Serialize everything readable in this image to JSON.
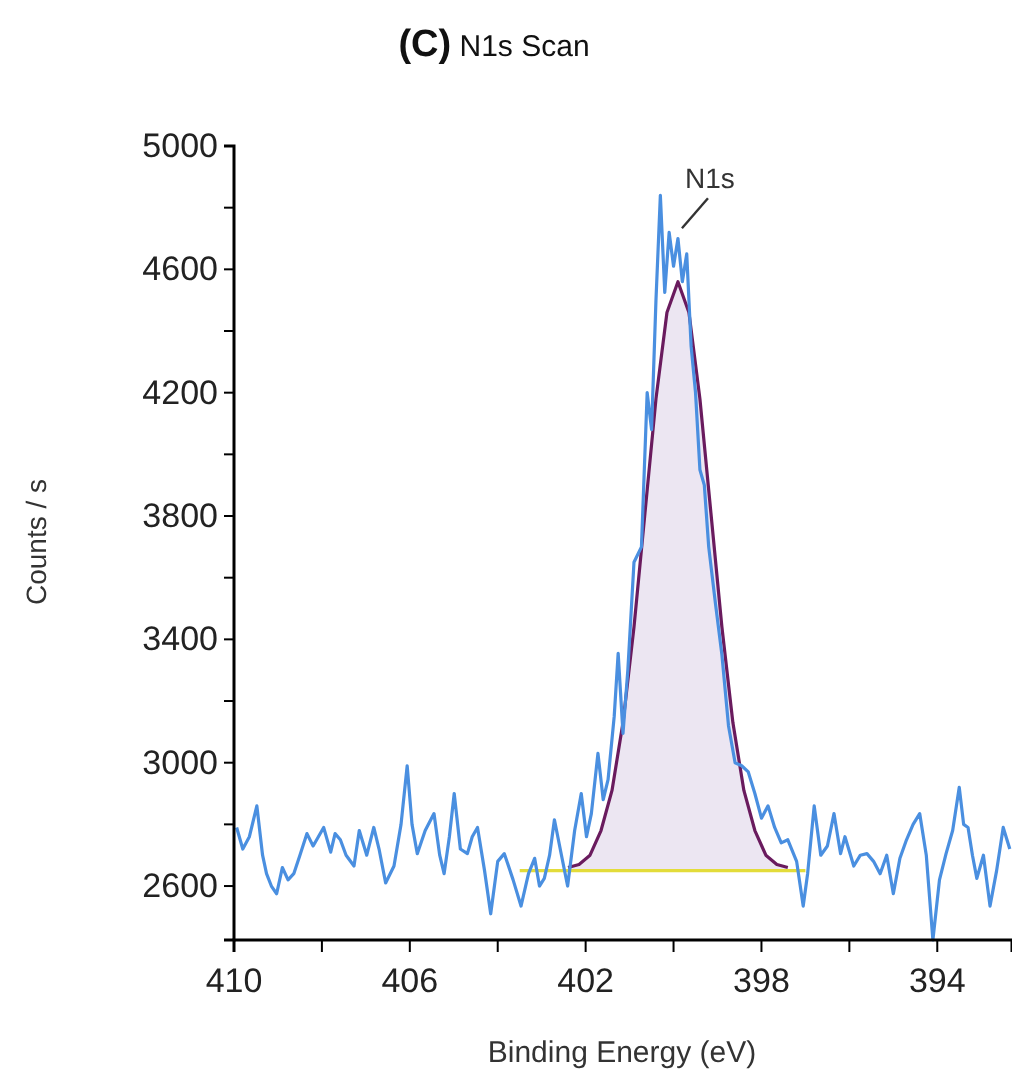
{
  "chart_data": {
    "type": "line",
    "title": "(C) N1s Scan",
    "xlabel": "Binding Energy (eV)",
    "ylabel": "Counts / s",
    "xlim": [
      410,
      392.3
    ],
    "ylim": [
      2425,
      5000
    ],
    "xticks": [
      410,
      {
        "value": 408,
        "label": null
      },
      406,
      {
        "value": 404,
        "label": null
      },
      402,
      {
        "value": 400,
        "label": null
      },
      398,
      {
        "value": 396,
        "label": null
      },
      394
    ],
    "yticks": [
      2600,
      {
        "value": 2800,
        "label": null
      },
      3000,
      {
        "value": 3200,
        "label": null
      },
      3400,
      {
        "value": 3600,
        "label": null
      },
      3800,
      {
        "value": 4000,
        "label": null
      },
      4200,
      {
        "value": 4400,
        "label": null
      },
      4600,
      {
        "value": 4800,
        "label": null
      },
      5000
    ],
    "grid": false,
    "marker": "none",
    "line_style": "solid",
    "annotations": [
      {
        "text": "N1s",
        "x": 399.9,
        "y": 4720
      }
    ],
    "series": [
      {
        "color": "#4a8fe0",
        "x": [
          409.94,
          409.8,
          409.65,
          409.48,
          409.35,
          409.26,
          409.15,
          409.03,
          408.9,
          408.77,
          408.64,
          408.5,
          408.34,
          408.2,
          408.08,
          407.96,
          407.8,
          407.7,
          407.58,
          407.45,
          407.27,
          407.15,
          406.98,
          406.82,
          406.7,
          406.55,
          406.36,
          406.2,
          406.06,
          405.95,
          405.83,
          405.65,
          405.45,
          405.32,
          405.22,
          405.1,
          404.99,
          404.85,
          404.69,
          404.58,
          404.46,
          404.3,
          404.16,
          404.0,
          403.85,
          403.65,
          403.47,
          403.3,
          403.16,
          403.05,
          402.94,
          402.82,
          402.71,
          402.55,
          402.41,
          402.25,
          402.1,
          401.98,
          401.87,
          401.72,
          401.6,
          401.49,
          401.35,
          401.26,
          401.15,
          401.04,
          400.9,
          400.73,
          400.6,
          400.5,
          400.4,
          400.3,
          400.2,
          400.1,
          400.0,
          399.9,
          399.8,
          399.7,
          399.6,
          399.5,
          399.4,
          399.3,
          399.2,
          399.05,
          398.9,
          398.75,
          398.6,
          398.45,
          398.3,
          398.15,
          398.0,
          397.85,
          397.7,
          397.55,
          397.4,
          397.2,
          397.05,
          396.95,
          396.8,
          396.65,
          396.5,
          396.35,
          396.2,
          396.1,
          395.9,
          395.75,
          395.6,
          395.45,
          395.3,
          395.15,
          395.0,
          394.85,
          394.7,
          394.55,
          394.4,
          394.25,
          394.1,
          393.95,
          393.8,
          393.65,
          393.5,
          393.4,
          393.3,
          393.2,
          393.1,
          392.95,
          392.8,
          392.65,
          392.5,
          392.35
        ],
        "values": [
          2790,
          2720,
          2760,
          2860,
          2700,
          2640,
          2600,
          2575,
          2660,
          2620,
          2640,
          2700,
          2770,
          2730,
          2760,
          2790,
          2710,
          2770,
          2750,
          2700,
          2665,
          2780,
          2700,
          2790,
          2720,
          2610,
          2665,
          2800,
          2990,
          2800,
          2705,
          2780,
          2835,
          2700,
          2640,
          2760,
          2900,
          2720,
          2705,
          2760,
          2790,
          2650,
          2510,
          2680,
          2705,
          2620,
          2535,
          2640,
          2690,
          2600,
          2625,
          2700,
          2815,
          2700,
          2600,
          2780,
          2900,
          2760,
          2835,
          3030,
          2880,
          2945,
          3150,
          3355,
          3095,
          3300,
          3650,
          3700,
          4200,
          4080,
          4500,
          4840,
          4525,
          4720,
          4610,
          4700,
          4560,
          4650,
          4350,
          4200,
          3950,
          3900,
          3700,
          3520,
          3350,
          3120,
          3000,
          2990,
          2970,
          2900,
          2820,
          2860,
          2790,
          2740,
          2750,
          2680,
          2535,
          2640,
          2860,
          2700,
          2730,
          2835,
          2705,
          2760,
          2665,
          2700,
          2705,
          2680,
          2640,
          2700,
          2575,
          2690,
          2750,
          2800,
          2835,
          2700,
          2425,
          2620,
          2705,
          2780,
          2920,
          2800,
          2790,
          2700,
          2625,
          2700,
          2535,
          2650,
          2790,
          2720
        ]
      },
      {
        "color": "#6a1b5e",
        "x": [
          402.4,
          402.15,
          401.9,
          401.65,
          401.4,
          401.15,
          400.9,
          400.65,
          400.4,
          400.15,
          399.9,
          399.65,
          399.4,
          399.15,
          398.9,
          398.65,
          398.4,
          398.15,
          397.9,
          397.65,
          397.4
        ],
        "values": [
          2660,
          2670,
          2700,
          2780,
          2910,
          3130,
          3440,
          3810,
          4180,
          4460,
          4560,
          4460,
          4180,
          3810,
          3440,
          3130,
          2910,
          2780,
          2700,
          2670,
          2660
        ],
        "lower": [
          2650,
          2650,
          2650,
          2650,
          2650,
          2650,
          2650,
          2650,
          2650,
          2650,
          2650,
          2650,
          2650,
          2650,
          2650,
          2650,
          2650,
          2650,
          2650,
          2650,
          2650
        ],
        "upper": [
          2660,
          2670,
          2700,
          2780,
          2910,
          3130,
          3440,
          3810,
          4180,
          4460,
          4560,
          4460,
          4180,
          3810,
          3440,
          3130,
          2910,
          2780,
          2700,
          2670,
          2660
        ]
      },
      {
        "color": "#e3dc3a",
        "x": [
          403.5,
          397.0
        ],
        "values": [
          2650,
          2650
        ]
      }
    ]
  }
}
